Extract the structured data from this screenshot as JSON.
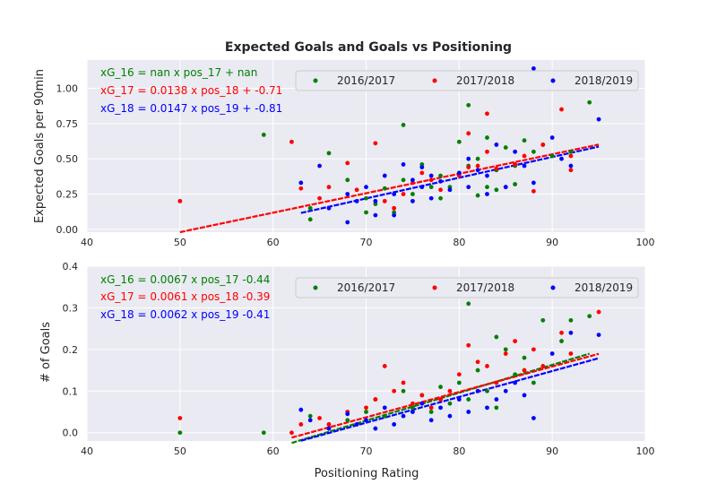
{
  "chart_data": [
    {
      "type": "scatter",
      "title": "Expected Goals and Goals vs Positioning",
      "xlabel": "",
      "ylabel": "Expected Goals per 90min",
      "xlim": [
        40,
        100
      ],
      "ylim": [
        -0.02,
        1.2
      ],
      "xticks": [
        "40",
        "50",
        "60",
        "70",
        "80",
        "90",
        "100"
      ],
      "yticks": [
        "0.00",
        "0.25",
        "0.50",
        "0.75",
        "1.00"
      ],
      "grid": true,
      "legend_placement": "top-right",
      "equations": [
        {
          "text": "xG_16 = nan x pos_17 + nan",
          "color": "#008000"
        },
        {
          "text": "xG_17 = 0.0138 x pos_18 + -0.71",
          "color": "#ff0000"
        },
        {
          "text": "xG_18 = 0.0147 x pos_19 + -0.81",
          "color": "#0000ff"
        }
      ],
      "series": [
        {
          "name": "2016/2017",
          "color": "#008000",
          "points": [
            [
              59,
              0.67
            ],
            [
              64,
              0.15
            ],
            [
              64,
              0.07
            ],
            [
              66,
              0.54
            ],
            [
              68,
              0.35
            ],
            [
              70,
              0.22
            ],
            [
              70,
              0.12
            ],
            [
              71,
              0.18
            ],
            [
              72,
              0.29
            ],
            [
              73,
              0.12
            ],
            [
              74,
              0.74
            ],
            [
              74,
              0.35
            ],
            [
              75,
              0.25
            ],
            [
              76,
              0.46
            ],
            [
              77,
              0.3
            ],
            [
              78,
              0.38
            ],
            [
              78,
              0.22
            ],
            [
              79,
              0.3
            ],
            [
              80,
              0.62
            ],
            [
              80,
              0.4
            ],
            [
              81,
              0.88
            ],
            [
              81,
              0.45
            ],
            [
              82,
              0.5
            ],
            [
              82,
              0.24
            ],
            [
              83,
              0.65
            ],
            [
              83,
              0.3
            ],
            [
              84,
              0.42
            ],
            [
              84,
              0.28
            ],
            [
              85,
              0.58
            ],
            [
              86,
              0.45
            ],
            [
              86,
              0.32
            ],
            [
              87,
              0.63
            ],
            [
              88,
              0.55
            ],
            [
              89,
              0.6
            ],
            [
              90,
              0.52
            ],
            [
              92,
              0.55
            ],
            [
              94,
              0.9
            ]
          ],
          "fit": null
        },
        {
          "name": "2017/2018",
          "color": "#ff0000",
          "points": [
            [
              50,
              0.2
            ],
            [
              62,
              0.62
            ],
            [
              63,
              0.29
            ],
            [
              65,
              0.22
            ],
            [
              66,
              0.3
            ],
            [
              68,
              0.47
            ],
            [
              69,
              0.28
            ],
            [
              71,
              0.61
            ],
            [
              72,
              0.2
            ],
            [
              73,
              0.15
            ],
            [
              74,
              0.25
            ],
            [
              75,
              0.33
            ],
            [
              76,
              0.4
            ],
            [
              77,
              0.35
            ],
            [
              78,
              0.28
            ],
            [
              79,
              1.0
            ],
            [
              80,
              0.38
            ],
            [
              81,
              0.44
            ],
            [
              81,
              0.68
            ],
            [
              82,
              0.45
            ],
            [
              83,
              0.82
            ],
            [
              83,
              0.55
            ],
            [
              84,
              0.43
            ],
            [
              85,
              0.3
            ],
            [
              86,
              0.46
            ],
            [
              87,
              0.52
            ],
            [
              88,
              0.27
            ],
            [
              89,
              0.6
            ],
            [
              91,
              0.85
            ],
            [
              92,
              0.42
            ],
            [
              92,
              0.52
            ]
          ],
          "fit": {
            "slope": 0.0138,
            "intercept": -0.71,
            "x_range": [
              50,
              95
            ]
          }
        },
        {
          "name": "2018/2019",
          "color": "#0000ff",
          "points": [
            [
              63,
              0.33
            ],
            [
              65,
              0.45
            ],
            [
              66,
              0.15
            ],
            [
              68,
              0.05
            ],
            [
              68,
              0.25
            ],
            [
              69,
              0.2
            ],
            [
              70,
              0.3
            ],
            [
              71,
              0.2
            ],
            [
              71,
              0.1
            ],
            [
              72,
              0.38
            ],
            [
              73,
              0.25
            ],
            [
              73,
              0.1
            ],
            [
              74,
              0.46
            ],
            [
              75,
              0.35
            ],
            [
              75,
              0.2
            ],
            [
              76,
              0.3
            ],
            [
              76,
              0.44
            ],
            [
              77,
              0.38
            ],
            [
              77,
              0.22
            ],
            [
              78,
              0.34
            ],
            [
              79,
              0.28
            ],
            [
              80,
              0.4
            ],
            [
              81,
              0.5
            ],
            [
              81,
              0.3
            ],
            [
              82,
              0.42
            ],
            [
              83,
              0.38
            ],
            [
              83,
              0.25
            ],
            [
              84,
              0.6
            ],
            [
              85,
              0.3
            ],
            [
              86,
              0.55
            ],
            [
              87,
              0.45
            ],
            [
              88,
              1.14
            ],
            [
              88,
              0.33
            ],
            [
              90,
              0.65
            ],
            [
              91,
              0.5
            ],
            [
              92,
              0.45
            ],
            [
              95,
              0.78
            ]
          ],
          "fit": {
            "slope": 0.0147,
            "intercept": -0.81,
            "x_range": [
              63,
              95
            ]
          }
        }
      ]
    },
    {
      "type": "scatter",
      "title": "",
      "xlabel": "Positioning Rating",
      "ylabel": "# of Goals",
      "xlim": [
        40,
        100
      ],
      "ylim": [
        -0.02,
        0.4
      ],
      "xticks": [
        "40",
        "50",
        "60",
        "70",
        "80",
        "90",
        "100"
      ],
      "yticks": [
        "0.0",
        "0.1",
        "0.2",
        "0.3",
        "0.4"
      ],
      "grid": true,
      "legend_placement": "top-right",
      "equations": [
        {
          "text": "xG_16 = 0.0067 x pos_17  -0.44",
          "color": "#008000"
        },
        {
          "text": "xG_17 = 0.0061 x pos_18  -0.39",
          "color": "#ff0000"
        },
        {
          "text": "xG_18 = 0.0062 x pos_19  -0.41",
          "color": "#0000ff"
        }
      ],
      "series": [
        {
          "name": "2016/2017",
          "color": "#008000",
          "points": [
            [
              50,
              0.0
            ],
            [
              59,
              0.0
            ],
            [
              64,
              0.04
            ],
            [
              66,
              0.02
            ],
            [
              68,
              0.03
            ],
            [
              70,
              0.05
            ],
            [
              71,
              0.08
            ],
            [
              72,
              0.04
            ],
            [
              74,
              0.1
            ],
            [
              75,
              0.06
            ],
            [
              76,
              0.09
            ],
            [
              77,
              0.05
            ],
            [
              78,
              0.11
            ],
            [
              79,
              0.07
            ],
            [
              80,
              0.12
            ],
            [
              81,
              0.31
            ],
            [
              81,
              0.08
            ],
            [
              82,
              0.15
            ],
            [
              83,
              0.1
            ],
            [
              84,
              0.23
            ],
            [
              84,
              0.06
            ],
            [
              85,
              0.2
            ],
            [
              86,
              0.14
            ],
            [
              87,
              0.18
            ],
            [
              88,
              0.12
            ],
            [
              89,
              0.27
            ],
            [
              91,
              0.22
            ],
            [
              92,
              0.27
            ],
            [
              94,
              0.28
            ]
          ],
          "fit": {
            "slope": 0.0067,
            "intercept": -0.44,
            "x_range": [
              62,
              94
            ]
          }
        },
        {
          "name": "2017/2018",
          "color": "#ff0000",
          "points": [
            [
              50,
              0.035
            ],
            [
              62,
              0.0
            ],
            [
              63,
              0.02
            ],
            [
              65,
              0.035
            ],
            [
              66,
              0.02
            ],
            [
              68,
              0.05
            ],
            [
              70,
              0.06
            ],
            [
              71,
              0.08
            ],
            [
              72,
              0.16
            ],
            [
              73,
              0.1
            ],
            [
              74,
              0.12
            ],
            [
              75,
              0.07
            ],
            [
              76,
              0.09
            ],
            [
              77,
              0.06
            ],
            [
              78,
              0.08
            ],
            [
              79,
              0.1
            ],
            [
              80,
              0.14
            ],
            [
              81,
              0.21
            ],
            [
              82,
              0.17
            ],
            [
              83,
              0.16
            ],
            [
              84,
              0.12
            ],
            [
              85,
              0.19
            ],
            [
              86,
              0.22
            ],
            [
              87,
              0.15
            ],
            [
              88,
              0.2
            ],
            [
              89,
              0.16
            ],
            [
              91,
              0.24
            ],
            [
              92,
              0.19
            ],
            [
              95,
              0.29
            ]
          ],
          "fit": {
            "slope": 0.0061,
            "intercept": -0.39,
            "x_range": [
              62,
              95
            ]
          }
        },
        {
          "name": "2018/2019",
          "color": "#0000ff",
          "points": [
            [
              63,
              0.055
            ],
            [
              64,
              0.03
            ],
            [
              66,
              0.01
            ],
            [
              68,
              0.045
            ],
            [
              69,
              0.02
            ],
            [
              70,
              0.03
            ],
            [
              71,
              0.01
            ],
            [
              72,
              0.06
            ],
            [
              73,
              0.02
            ],
            [
              74,
              0.04
            ],
            [
              75,
              0.05
            ],
            [
              76,
              0.07
            ],
            [
              77,
              0.03
            ],
            [
              78,
              0.06
            ],
            [
              79,
              0.04
            ],
            [
              80,
              0.08
            ],
            [
              81,
              0.05
            ],
            [
              82,
              0.1
            ],
            [
              83,
              0.06
            ],
            [
              84,
              0.08
            ],
            [
              85,
              0.1
            ],
            [
              86,
              0.12
            ],
            [
              87,
              0.09
            ],
            [
              88,
              0.035
            ],
            [
              90,
              0.19
            ],
            [
              92,
              0.24
            ],
            [
              95,
              0.235
            ]
          ],
          "fit": {
            "slope": 0.0062,
            "intercept": -0.41,
            "x_range": [
              63,
              95
            ]
          }
        }
      ]
    }
  ],
  "colors": {
    "plot_bg": "#eaeaf2",
    "grid": "#ffffff",
    "text": "#262626"
  }
}
